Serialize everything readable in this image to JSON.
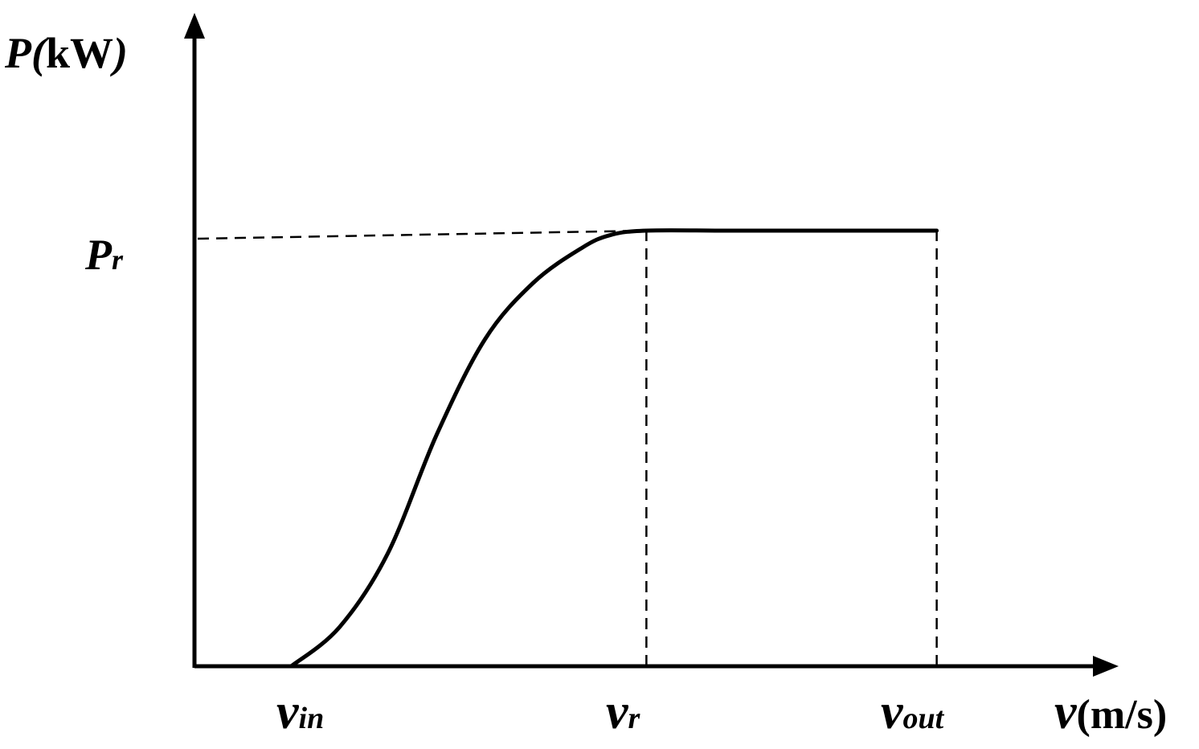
{
  "chart_data": {
    "type": "line",
    "title": "",
    "xlabel": {
      "symbol": "v",
      "unit": "(m/s)"
    },
    "ylabel": {
      "symbol": "P",
      "open_paren": "(",
      "unit": "kW",
      "close_paren": ")"
    },
    "x_ticks": [
      {
        "symbol": "v",
        "subscript": "in",
        "value": 1.0
      },
      {
        "symbol": "v",
        "subscript": "r",
        "value": 4.67
      },
      {
        "symbol": "v",
        "subscript": "out",
        "value": 7.67
      }
    ],
    "y_ticks": [
      {
        "symbol": "P",
        "subscript": "r",
        "value": 1.0
      }
    ],
    "xlim": [
      0,
      9.55
    ],
    "ylim": [
      0,
      1.5
    ],
    "grid": false,
    "legend": "none",
    "series": [
      {
        "style": "solid",
        "x": [
          1.0,
          1.5,
          2.0,
          2.5,
          3.0,
          3.5,
          4.0,
          4.3,
          4.67,
          5.5,
          6.5,
          7.67
        ],
        "y": [
          0.0,
          0.09,
          0.26,
          0.53,
          0.75,
          0.88,
          0.96,
          0.99,
          1.0,
          1.0,
          1.0,
          1.0
        ]
      }
    ],
    "reference_lines": [
      {
        "style": "dashed",
        "orientation": "horizontal",
        "y": 1.0,
        "x_from": 0,
        "x_to": 4.67
      },
      {
        "style": "dashed",
        "orientation": "vertical",
        "x": 4.67,
        "y_from": 0,
        "y_to": 1.0
      },
      {
        "style": "dashed",
        "orientation": "vertical",
        "x": 7.67,
        "y_from": 0,
        "y_to": 1.0
      }
    ],
    "colors": {
      "line": "#000000",
      "background": "#ffffff"
    }
  }
}
